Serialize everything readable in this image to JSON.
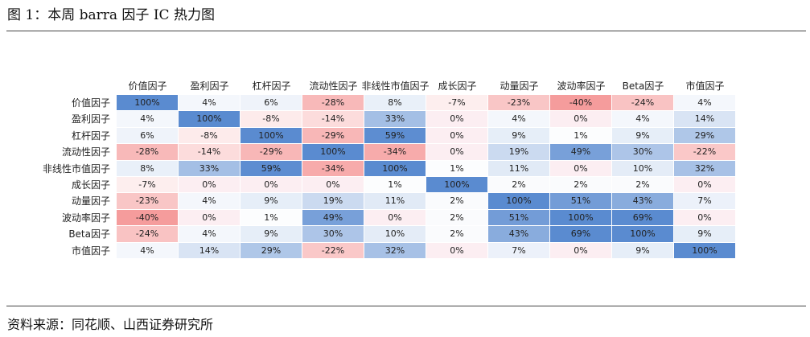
{
  "header": {
    "title": "图 1：本周 barra 因子 IC 热力图"
  },
  "footer": {
    "source": "资料来源：同花顺、山西证券研究所"
  },
  "chart_data": {
    "type": "heatmap",
    "title": "",
    "x_labels": [
      "价值因子",
      "盈利因子",
      "杠杆因子",
      "流动性因子",
      "非线性市值因子",
      "成长因子",
      "动量因子",
      "波动率因子",
      "Beta因子",
      "市值因子"
    ],
    "y_labels": [
      "价值因子",
      "盈利因子",
      "杠杆因子",
      "流动性因子",
      "非线性市值因子",
      "成长因子",
      "动量因子",
      "波动率因子",
      "Beta因子",
      "市值因子"
    ],
    "values": [
      [
        100,
        4,
        6,
        -28,
        8,
        -7,
        -23,
        -40,
        -24,
        4
      ],
      [
        4,
        100,
        -8,
        -14,
        33,
        0,
        4,
        0,
        4,
        14
      ],
      [
        6,
        -8,
        100,
        -29,
        59,
        0,
        9,
        1,
        9,
        29
      ],
      [
        -28,
        -14,
        -29,
        100,
        -34,
        0,
        19,
        49,
        30,
        -22
      ],
      [
        8,
        33,
        59,
        -34,
        100,
        1,
        11,
        0,
        10,
        32
      ],
      [
        -7,
        0,
        0,
        0,
        1,
        100,
        2,
        2,
        2,
        0
      ],
      [
        -23,
        4,
        9,
        19,
        11,
        2,
        100,
        51,
        43,
        7
      ],
      [
        -40,
        0,
        1,
        49,
        0,
        2,
        51,
        100,
        69,
        0
      ],
      [
        -24,
        4,
        9,
        30,
        10,
        2,
        43,
        69,
        100,
        9
      ],
      [
        4,
        14,
        29,
        -22,
        32,
        0,
        7,
        0,
        9,
        100
      ]
    ],
    "value_format": "percent",
    "colors": {
      "positive": "#5a8bd0",
      "negative": "#f06a6a",
      "neutral": "#ffffff"
    }
  }
}
